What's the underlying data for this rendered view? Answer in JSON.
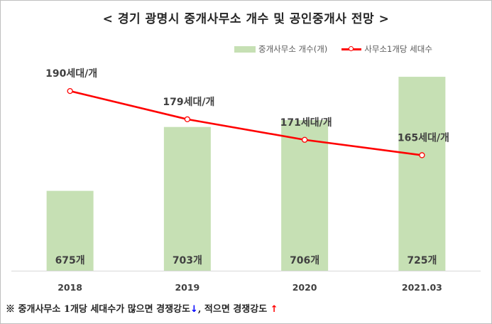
{
  "title": "< 경기 광명시 중개사무소 개수 및 공인중개사 전망 >",
  "legend": {
    "bar_label": "중개사무소 개수(개)",
    "line_label": "사무소1개당 세대수"
  },
  "colors": {
    "bar": "#c6e0b4",
    "line": "#ff0000",
    "text": "#404040"
  },
  "chart_data": {
    "type": "bar+line",
    "categories": [
      "2018",
      "2019",
      "2020",
      "2021.03"
    ],
    "series": [
      {
        "name": "중개사무소 개수(개)",
        "type": "bar",
        "values": [
          675,
          703,
          706,
          725
        ],
        "data_labels": [
          "675개",
          "703개",
          "706개",
          "725개"
        ]
      },
      {
        "name": "사무소1개당 세대수",
        "type": "line",
        "values": [
          190,
          179,
          171,
          165
        ],
        "data_labels": [
          "190세대/개",
          "179세대/개",
          "171세대/개",
          "165세대/개"
        ]
      }
    ],
    "bar_axis_range": [
      640,
      730
    ],
    "line_axis_range": [
      120,
      200
    ],
    "grid": false,
    "legend_position": "top-right"
  },
  "footnote": {
    "text_a": "※ 중개사무소 1개당 세대수가 많으면 경쟁강도",
    "arrow_down": "↓",
    "text_b": ", 적으면 경쟁강도 ",
    "arrow_up": "↑"
  }
}
